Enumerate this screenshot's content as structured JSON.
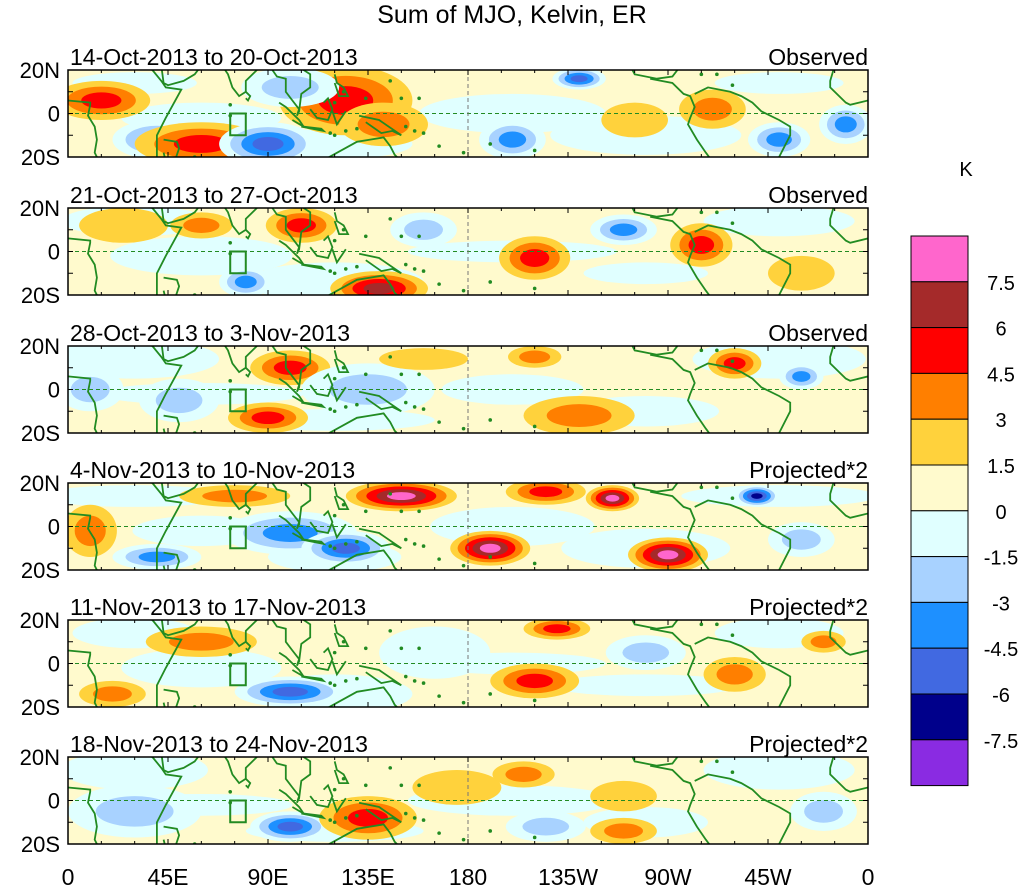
{
  "title": "Sum of MJO, Kelvin, ER",
  "units": "K",
  "lat_labels": [
    "20N",
    "0",
    "20S"
  ],
  "lon_labels": [
    "0",
    "45E",
    "90E",
    "135E",
    "180",
    "135W",
    "90W",
    "45W",
    "0"
  ],
  "panels": [
    {
      "period": "14-Oct-2013 to 20-Oct-2013",
      "type": "Observed"
    },
    {
      "period": "21-Oct-2013 to 27-Oct-2013",
      "type": "Observed"
    },
    {
      "period": "28-Oct-2013 to 3-Nov-2013",
      "type": "Observed"
    },
    {
      "period": "4-Nov-2013 to 10-Nov-2013",
      "type": "Projected*2"
    },
    {
      "period": "11-Nov-2013 to 17-Nov-2013",
      "type": "Projected*2"
    },
    {
      "period": "18-Nov-2013 to 24-Nov-2013",
      "type": "Projected*2"
    }
  ],
  "colorbar": {
    "labels": [
      "7.5",
      "6",
      "4.5",
      "3",
      "1.5",
      "0",
      "-1.5",
      "-3",
      "-4.5",
      "-6",
      "-7.5"
    ],
    "colors": [
      "#ff66cc",
      "#a52a2a",
      "#ff0000",
      "#ff7f00",
      "#ffd23c",
      "#fffacd",
      "#e0ffff",
      "#a8d2ff",
      "#1e90ff",
      "#4169e1",
      "#00008b",
      "#8a2be2"
    ]
  },
  "palette": {
    "neg4": "#00008b",
    "neg3": "#4169e1",
    "neg2": "#1e90ff",
    "neg1": "#a8d2ff",
    "neg0": "#e0ffff",
    "pos0": "#fffacd",
    "pos1": "#ffd23c",
    "pos2": "#ff7f00",
    "pos3": "#ff0000",
    "pos4": "#a52a2a",
    "pos5": "#ff66cc",
    "coast": "#228b22",
    "box": "#228b22"
  },
  "anomalies": [
    [
      {
        "lon": 15,
        "lat": 6,
        "lw": 22,
        "lh": 9,
        "v": 3
      },
      {
        "lon": 40,
        "lat": -12,
        "lw": 20,
        "lh": 9,
        "v": -2
      },
      {
        "lon": 60,
        "lat": -14,
        "lw": 30,
        "lh": 10,
        "v": 3
      },
      {
        "lon": 90,
        "lat": -14,
        "lw": 22,
        "lh": 10,
        "v": -3
      },
      {
        "lon": 125,
        "lat": 6,
        "lw": 30,
        "lh": 16,
        "v": 3
      },
      {
        "lon": 142,
        "lat": -5,
        "lw": 20,
        "lh": 10,
        "v": 2
      },
      {
        "lon": 100,
        "lat": 12,
        "lw": 22,
        "lh": 9,
        "v": -1
      },
      {
        "lon": 200,
        "lat": -12,
        "lw": 15,
        "lh": 9,
        "v": -2
      },
      {
        "lon": 230,
        "lat": 16,
        "lw": 12,
        "lh": 5,
        "v": -3
      },
      {
        "lon": 255,
        "lat": -3,
        "lw": 15,
        "lh": 8,
        "v": 1
      },
      {
        "lon": 290,
        "lat": 2,
        "lw": 15,
        "lh": 9,
        "v": 2
      },
      {
        "lon": 320,
        "lat": -12,
        "lw": 14,
        "lh": 8,
        "v": -2
      },
      {
        "lon": 350,
        "lat": -5,
        "lw": 12,
        "lh": 9,
        "v": -2
      }
    ],
    [
      {
        "lon": 25,
        "lat": 12,
        "lw": 20,
        "lh": 8,
        "v": 1
      },
      {
        "lon": 60,
        "lat": 12,
        "lw": 14,
        "lh": 6,
        "v": 2
      },
      {
        "lon": 105,
        "lat": 12,
        "lw": 16,
        "lh": 8,
        "v": 3
      },
      {
        "lon": 140,
        "lat": -17,
        "lw": 22,
        "lh": 8,
        "v": 4
      },
      {
        "lon": 160,
        "lat": 10,
        "lw": 15,
        "lh": 8,
        "v": -1
      },
      {
        "lon": 210,
        "lat": -3,
        "lw": 16,
        "lh": 10,
        "v": 3
      },
      {
        "lon": 285,
        "lat": 3,
        "lw": 14,
        "lh": 10,
        "v": 3
      },
      {
        "lon": 80,
        "lat": -14,
        "lw": 12,
        "lh": 7,
        "v": -2
      },
      {
        "lon": 250,
        "lat": 10,
        "lw": 15,
        "lh": 7,
        "v": -2
      },
      {
        "lon": 330,
        "lat": -10,
        "lw": 15,
        "lh": 8,
        "v": 1
      }
    ],
    [
      {
        "lon": 100,
        "lat": 10,
        "lw": 18,
        "lh": 8,
        "v": 3
      },
      {
        "lon": 90,
        "lat": -13,
        "lw": 18,
        "lh": 7,
        "v": 3
      },
      {
        "lon": 135,
        "lat": 0,
        "lw": 30,
        "lh": 12,
        "v": -1
      },
      {
        "lon": 160,
        "lat": 14,
        "lw": 20,
        "lh": 5,
        "v": 1
      },
      {
        "lon": 210,
        "lat": 15,
        "lw": 12,
        "lh": 5,
        "v": 2
      },
      {
        "lon": 230,
        "lat": -12,
        "lw": 25,
        "lh": 9,
        "v": 2
      },
      {
        "lon": 300,
        "lat": 12,
        "lw": 12,
        "lh": 7,
        "v": 3
      },
      {
        "lon": 50,
        "lat": -5,
        "lw": 18,
        "lh": 10,
        "v": -1
      },
      {
        "lon": 10,
        "lat": 0,
        "lw": 15,
        "lh": 10,
        "v": -1
      },
      {
        "lon": 330,
        "lat": 6,
        "lw": 10,
        "lh": 6,
        "v": -2
      }
    ],
    [
      {
        "lon": 10,
        "lat": -2,
        "lw": 12,
        "lh": 12,
        "v": 2
      },
      {
        "lon": 75,
        "lat": 14,
        "lw": 25,
        "lh": 5,
        "v": 2
      },
      {
        "lon": 150,
        "lat": 14,
        "lw": 25,
        "lh": 7,
        "v": 5
      },
      {
        "lon": 215,
        "lat": 16,
        "lw": 18,
        "lh": 6,
        "v": 3
      },
      {
        "lon": 190,
        "lat": -10,
        "lw": 18,
        "lh": 8,
        "v": 5
      },
      {
        "lon": 270,
        "lat": -13,
        "lw": 18,
        "lh": 8,
        "v": 5
      },
      {
        "lon": 245,
        "lat": 13,
        "lw": 12,
        "lh": 6,
        "v": 5
      },
      {
        "lon": 310,
        "lat": 14,
        "lw": 10,
        "lh": 5,
        "v": -4
      },
      {
        "lon": 100,
        "lat": -3,
        "lw": 30,
        "lh": 10,
        "v": -2
      },
      {
        "lon": 125,
        "lat": -10,
        "lw": 20,
        "lh": 8,
        "v": -3
      },
      {
        "lon": 40,
        "lat": -14,
        "lw": 20,
        "lh": 6,
        "v": -2
      },
      {
        "lon": 330,
        "lat": -6,
        "lw": 15,
        "lh": 8,
        "v": -1
      }
    ],
    [
      {
        "lon": 60,
        "lat": 10,
        "lw": 25,
        "lh": 7,
        "v": 2
      },
      {
        "lon": 100,
        "lat": -13,
        "lw": 25,
        "lh": 7,
        "v": -3
      },
      {
        "lon": 20,
        "lat": -14,
        "lw": 15,
        "lh": 6,
        "v": 2
      },
      {
        "lon": 220,
        "lat": 16,
        "lw": 15,
        "lh": 5,
        "v": 3
      },
      {
        "lon": 210,
        "lat": -8,
        "lw": 20,
        "lh": 8,
        "v": 3
      },
      {
        "lon": 300,
        "lat": -5,
        "lw": 14,
        "lh": 8,
        "v": 2
      },
      {
        "lon": 340,
        "lat": 10,
        "lw": 10,
        "lh": 5,
        "v": 2
      },
      {
        "lon": 165,
        "lat": 5,
        "lw": 25,
        "lh": 12,
        "v": 0
      },
      {
        "lon": 260,
        "lat": 5,
        "lw": 18,
        "lh": 8,
        "v": -1
      }
    ],
    [
      {
        "lon": 100,
        "lat": -12,
        "lw": 18,
        "lh": 7,
        "v": -3
      },
      {
        "lon": 135,
        "lat": -8,
        "lw": 22,
        "lh": 10,
        "v": 3
      },
      {
        "lon": 30,
        "lat": -5,
        "lw": 30,
        "lh": 12,
        "v": -1
      },
      {
        "lon": 175,
        "lat": 6,
        "lw": 20,
        "lh": 8,
        "v": 1
      },
      {
        "lon": 205,
        "lat": 12,
        "lw": 14,
        "lh": 6,
        "v": 2
      },
      {
        "lon": 250,
        "lat": 2,
        "lw": 15,
        "lh": 7,
        "v": 1
      },
      {
        "lon": 250,
        "lat": -14,
        "lw": 15,
        "lh": 6,
        "v": 2
      },
      {
        "lon": 215,
        "lat": -12,
        "lw": 18,
        "lh": 7,
        "v": -1
      },
      {
        "lon": 340,
        "lat": -5,
        "lw": 15,
        "lh": 9,
        "v": -1
      }
    ]
  ]
}
